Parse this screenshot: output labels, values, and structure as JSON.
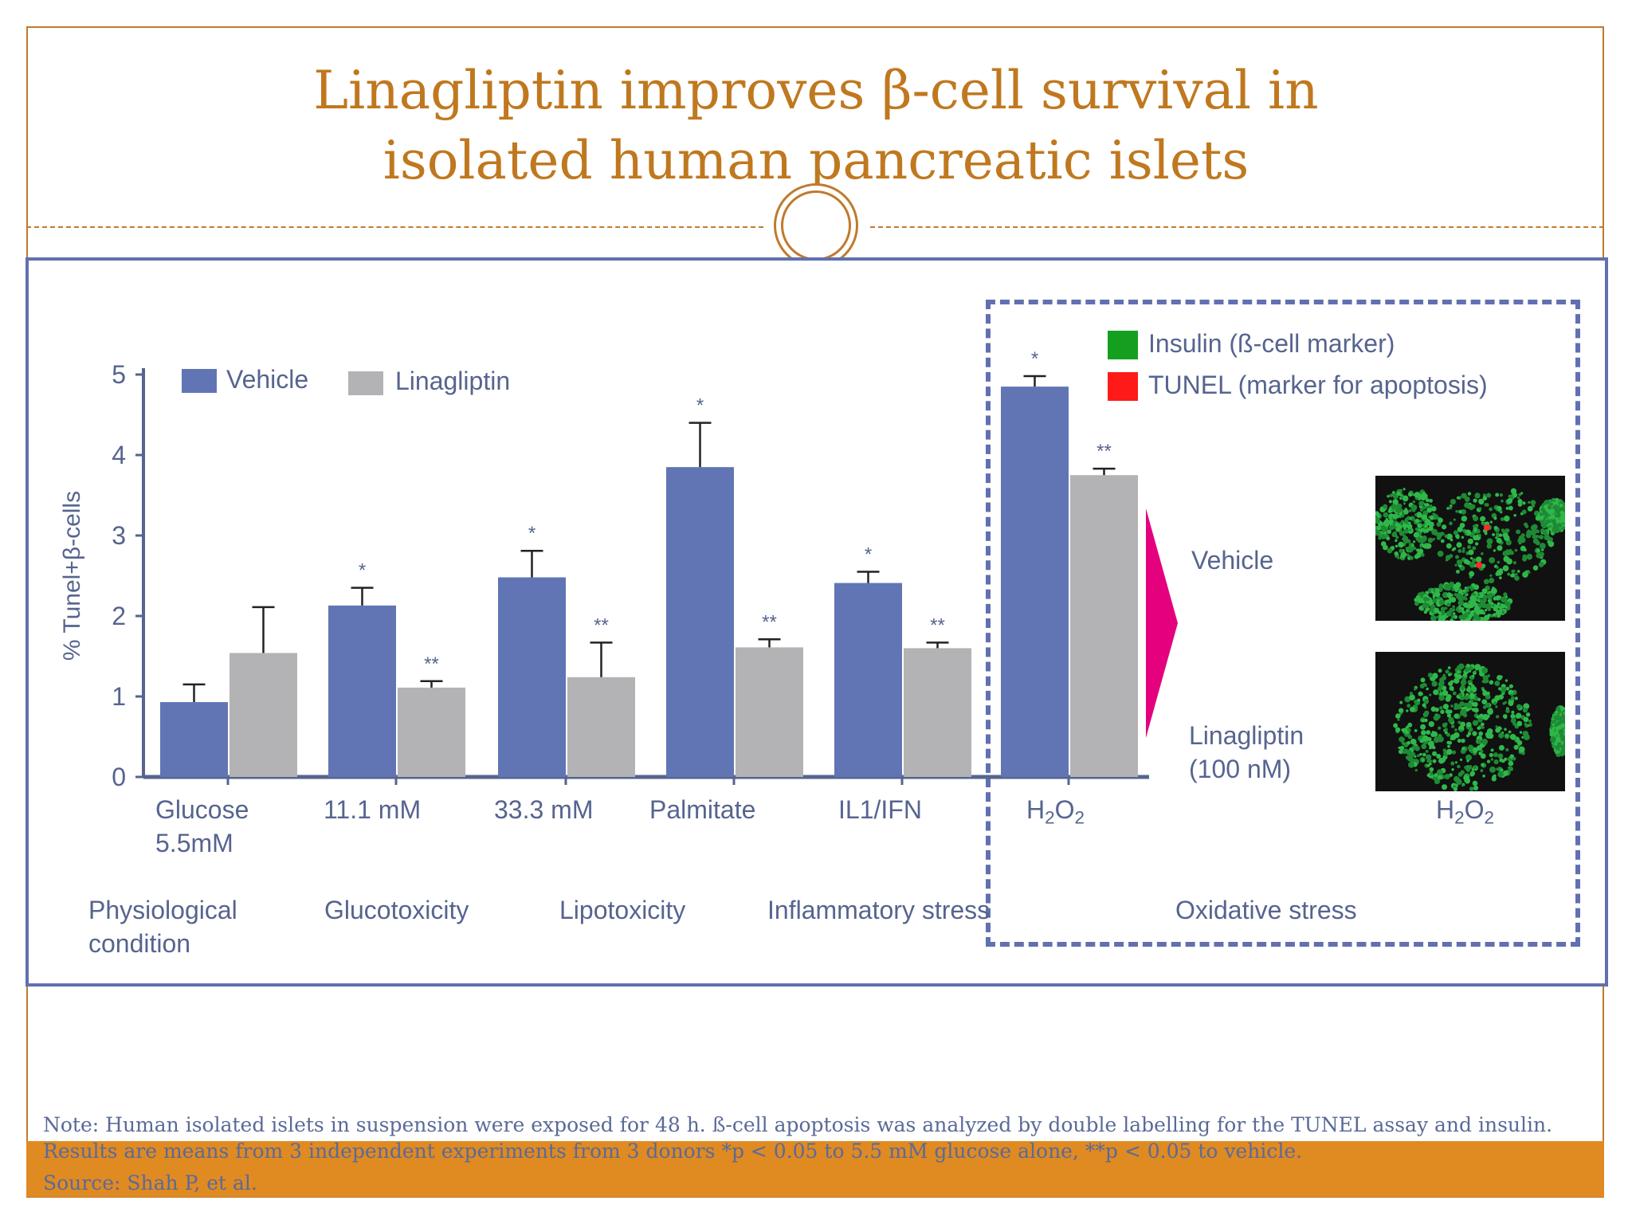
{
  "title": {
    "line1": "Linagliptin improves β-cell survival in",
    "line2": "isolated human pancreatic islets"
  },
  "colors": {
    "accent": "#c0781f",
    "frame": "#6170b0",
    "vehicle": "#6175b4",
    "linagliptin": "#b3b3b5",
    "arrow": "#e5007e",
    "footer_bar": "#e08a22",
    "insulin": "#14a01e",
    "tunel": "#ff1a1a"
  },
  "chart_data": {
    "type": "bar",
    "ylabel": "% Tunel+β-cells",
    "ylim": [
      0,
      5
    ],
    "yticks": [
      "0",
      "1",
      "2",
      "3",
      "4",
      "5"
    ],
    "legend": {
      "placement": "top-left",
      "entries": [
        "Vehicle",
        "Linagliptin"
      ]
    },
    "categories": [
      {
        "line1": "Glucose",
        "line2": "5.5mM"
      },
      {
        "line1": "11.1 mM",
        "line2": ""
      },
      {
        "line1": "33.3 mM",
        "line2": ""
      },
      {
        "line1": "Palmitate",
        "line2": ""
      },
      {
        "line1": "IL1/IFN",
        "line2": ""
      },
      {
        "line1": "H2O2",
        "line2": ""
      }
    ],
    "series": [
      {
        "name": "Vehicle",
        "values": [
          0.93,
          2.13,
          2.48,
          3.85,
          2.41,
          4.85
        ],
        "errors": [
          0.22,
          0.22,
          0.33,
          0.55,
          0.14,
          0.13
        ],
        "significance": [
          "",
          "*",
          "*",
          "*",
          "*",
          "*"
        ]
      },
      {
        "name": "Linagliptin",
        "values": [
          1.54,
          1.11,
          1.24,
          1.61,
          1.6,
          3.75
        ],
        "errors": [
          0.57,
          0.08,
          0.43,
          0.1,
          0.07,
          0.08
        ],
        "significance": [
          "",
          "**",
          "**",
          "**",
          "**",
          "**"
        ]
      }
    ]
  },
  "groups": [
    {
      "line1": "Physiological",
      "line2": "condition"
    },
    {
      "line1": "Glucotoxicity",
      "line2": ""
    },
    {
      "line1": "Lipotoxicity",
      "line2": ""
    },
    {
      "line1": "Inflammatory stress",
      "line2": ""
    },
    {
      "line1": "Oxidative stress",
      "line2": ""
    }
  ],
  "inset": {
    "legend_insulin": "Insulin (ß-cell marker)",
    "legend_tunel": "TUNEL (marker for apoptosis)",
    "vehicle_label": "Vehicle",
    "linagliptin_line1": "Linagliptin",
    "linagliptin_line2": "(100 nM)",
    "image_label": "H2O2"
  },
  "notes": {
    "line1": "Note: Human isolated islets in suspension were exposed  for 48 h. ß-cell apoptosis was analyzed by double labelling for the TUNEL assay and insulin.",
    "line2": "Results are means from 3 independent experiments from 3 donors *p < 0.05 to 5.5 mM glucose alone, **p < 0.05 to vehicle.",
    "line3": "Source: Shah P, et al."
  }
}
